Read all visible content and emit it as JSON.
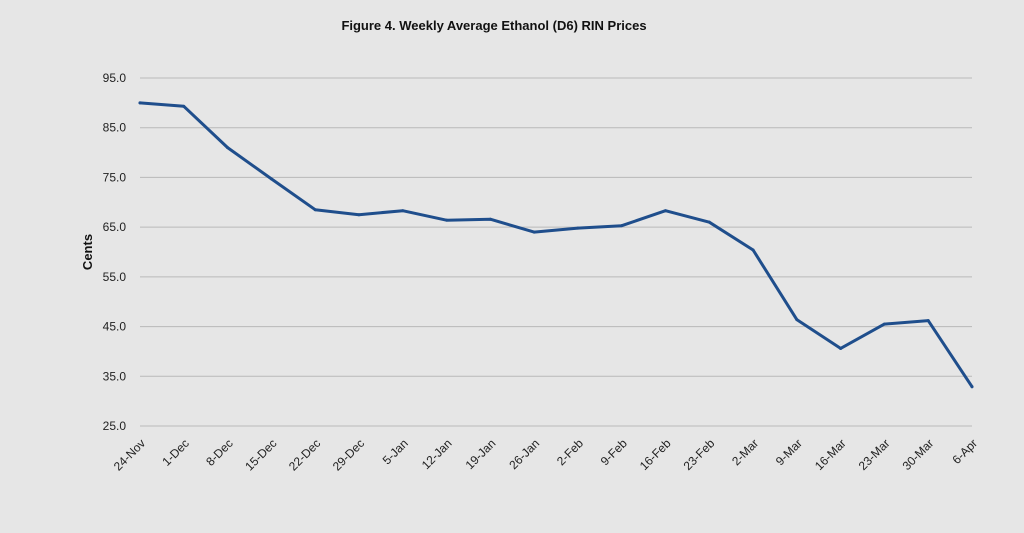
{
  "chart_data": {
    "type": "line",
    "title": "Figure 4. Weekly Average Ethanol (D6) RIN Prices",
    "xlabel": "",
    "ylabel": "Cents",
    "ylim": [
      25,
      95
    ],
    "yticks": [
      "95.0",
      "85.0",
      "75.0",
      "65.0",
      "55.0",
      "45.0",
      "35.0",
      "25.0"
    ],
    "grid": true,
    "categories": [
      "24-Nov",
      "1-Dec",
      "8-Dec",
      "15-Dec",
      "22-Dec",
      "29-Dec",
      "5-Jan",
      "12-Jan",
      "19-Jan",
      "26-Jan",
      "2-Feb",
      "9-Feb",
      "16-Feb",
      "23-Feb",
      "2-Mar",
      "9-Mar",
      "16-Mar",
      "23-Mar",
      "30-Mar",
      "6-Apr"
    ],
    "series": [
      {
        "color": "#1f4e8c",
        "values": [
          90.0,
          89.3,
          81.0,
          74.7,
          68.5,
          67.5,
          68.3,
          66.4,
          66.6,
          64.0,
          64.8,
          65.3,
          68.3,
          66.0,
          60.4,
          46.4,
          40.6,
          45.5,
          46.2,
          32.9
        ]
      }
    ]
  }
}
